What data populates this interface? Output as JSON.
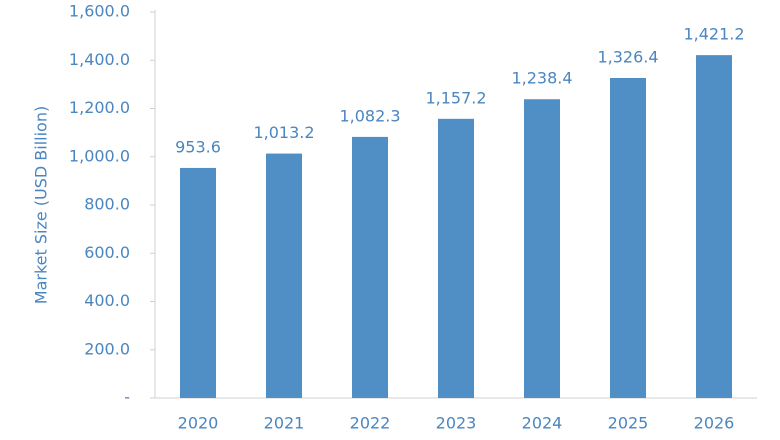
{
  "chart_data": {
    "type": "bar",
    "y_label": "Market Size (USD Billion)",
    "categories": [
      "2020",
      "2021",
      "2022",
      "2023",
      "2024",
      "2025",
      "2026"
    ],
    "values": [
      953.6,
      1013.2,
      1082.3,
      1157.2,
      1238.4,
      1326.4,
      1421.2
    ],
    "value_labels": [
      "953.6",
      "1,013.2",
      "1,082.3",
      "1,157.2",
      "1,238.4",
      "1,326.4",
      "1,421.2"
    ],
    "color": "#4f8fc6",
    "ylim": [
      0,
      1600
    ],
    "yticks": [
      {
        "value": 0,
        "label": "-"
      },
      {
        "value": 200,
        "label": "200.0"
      },
      {
        "value": 400,
        "label": "400.0"
      },
      {
        "value": 600,
        "label": "600.0"
      },
      {
        "value": 800,
        "label": "800.0"
      },
      {
        "value": 1000,
        "label": "1,000.0"
      },
      {
        "value": 1200,
        "label": "1,200.0"
      },
      {
        "value": 1400,
        "label": "1,400.0"
      },
      {
        "value": 1600,
        "label": "1,600.0"
      }
    ],
    "grid": false
  }
}
